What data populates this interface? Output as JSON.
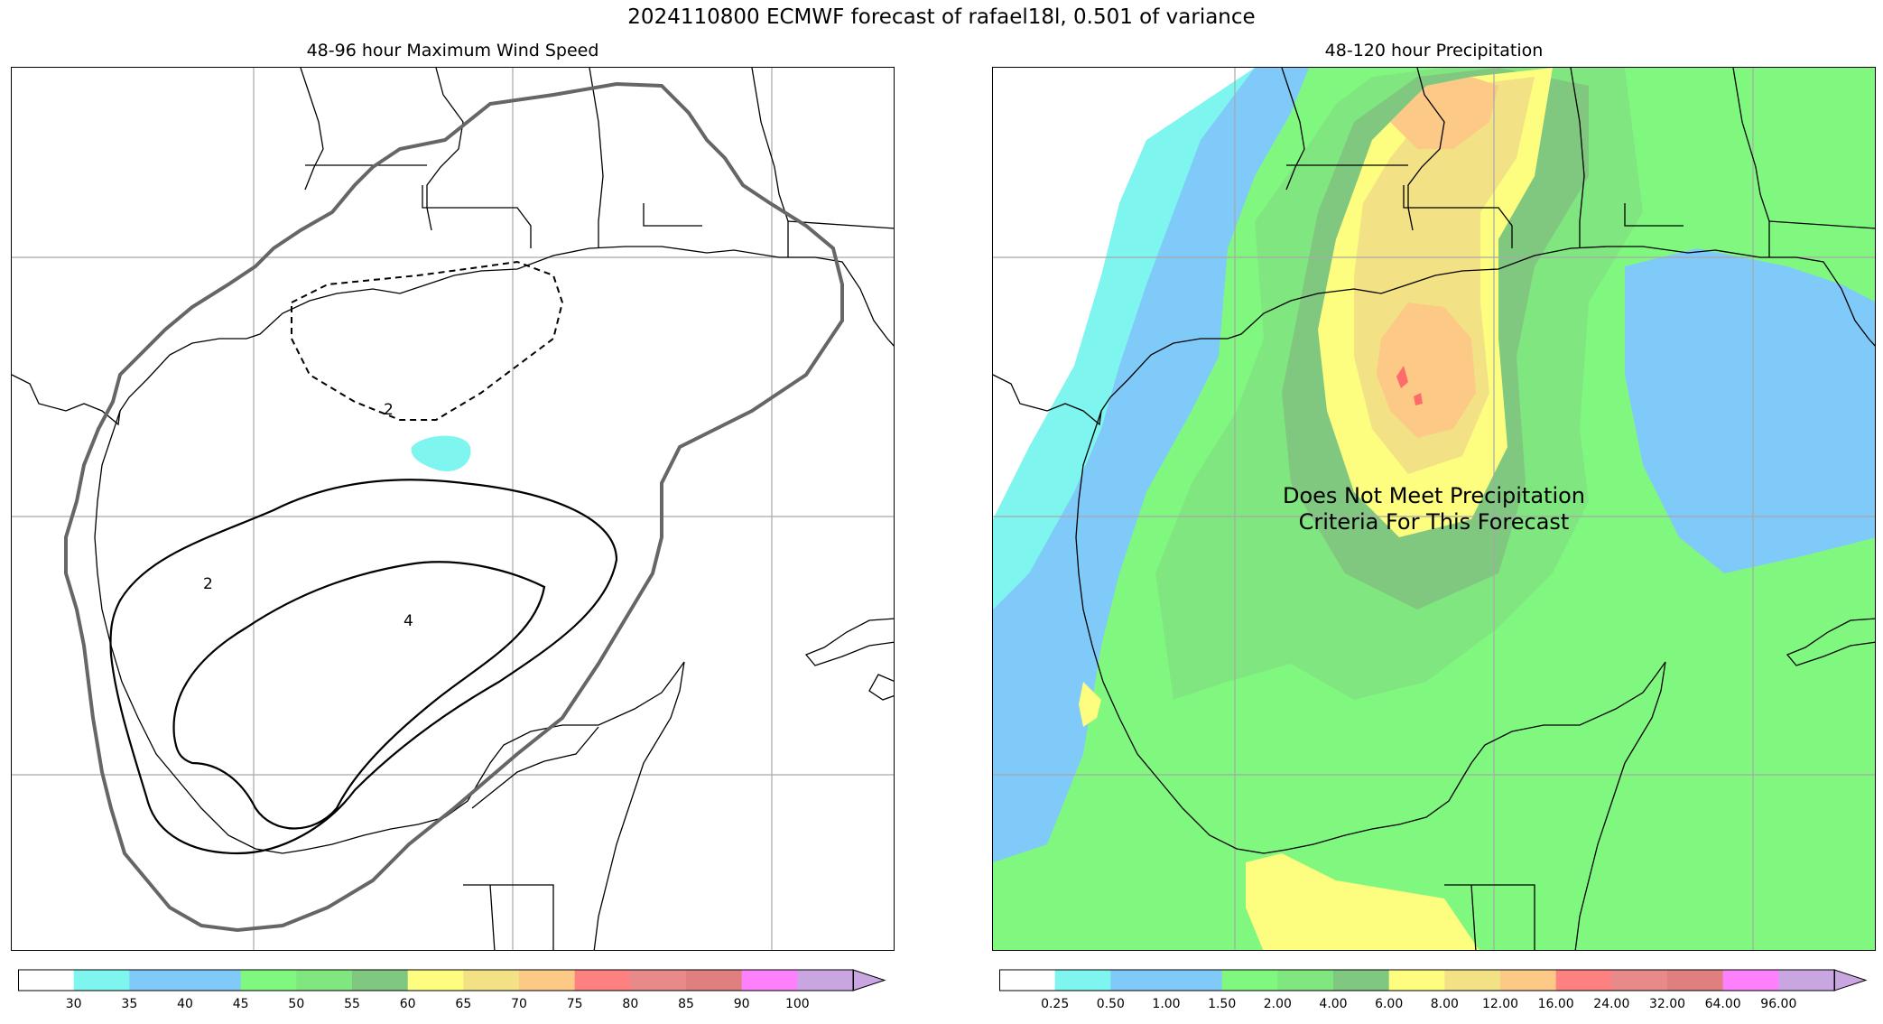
{
  "title": "2024110800 ECMWF forecast of rafael18l, 0.501 of variance",
  "left_panel": {
    "title": "48-96 hour Maximum Wind Speed",
    "contour_labels": [
      "2",
      "2",
      "4"
    ],
    "colorbar": {
      "ticks": [
        "30",
        "35",
        "40",
        "45",
        "50",
        "55",
        "60",
        "65",
        "70",
        "75",
        "80",
        "85",
        "90",
        "100"
      ],
      "colors": [
        "#ffffff",
        "#7ff5f0",
        "#7fcaf8",
        "#7fcaf8",
        "#80f880",
        "#80e680",
        "#80c880",
        "#fdfd80",
        "#f3e285",
        "#fdc986",
        "#fd8181",
        "#e88a8a",
        "#e07f7f",
        "#fd80fd",
        "#c9a6e2"
      ]
    }
  },
  "right_panel": {
    "title": "48-120 hour Precipitation",
    "overlay_line1": "Does Not Meet Precipitation",
    "overlay_line2": "Criteria For This Forecast",
    "colorbar": {
      "ticks": [
        "0.25",
        "0.50",
        "1.00",
        "1.50",
        "2.00",
        "4.00",
        "6.00",
        "8.00",
        "12.00",
        "16.00",
        "24.00",
        "32.00",
        "64.00",
        "96.00"
      ],
      "colors": [
        "#ffffff",
        "#7ff5f0",
        "#7fcaf8",
        "#7fcaf8",
        "#80f880",
        "#80e680",
        "#80c880",
        "#fdfd80",
        "#f3e285",
        "#fdc986",
        "#fd8181",
        "#e88a8a",
        "#e07f7f",
        "#fd80fd",
        "#c9a6e2"
      ]
    }
  }
}
